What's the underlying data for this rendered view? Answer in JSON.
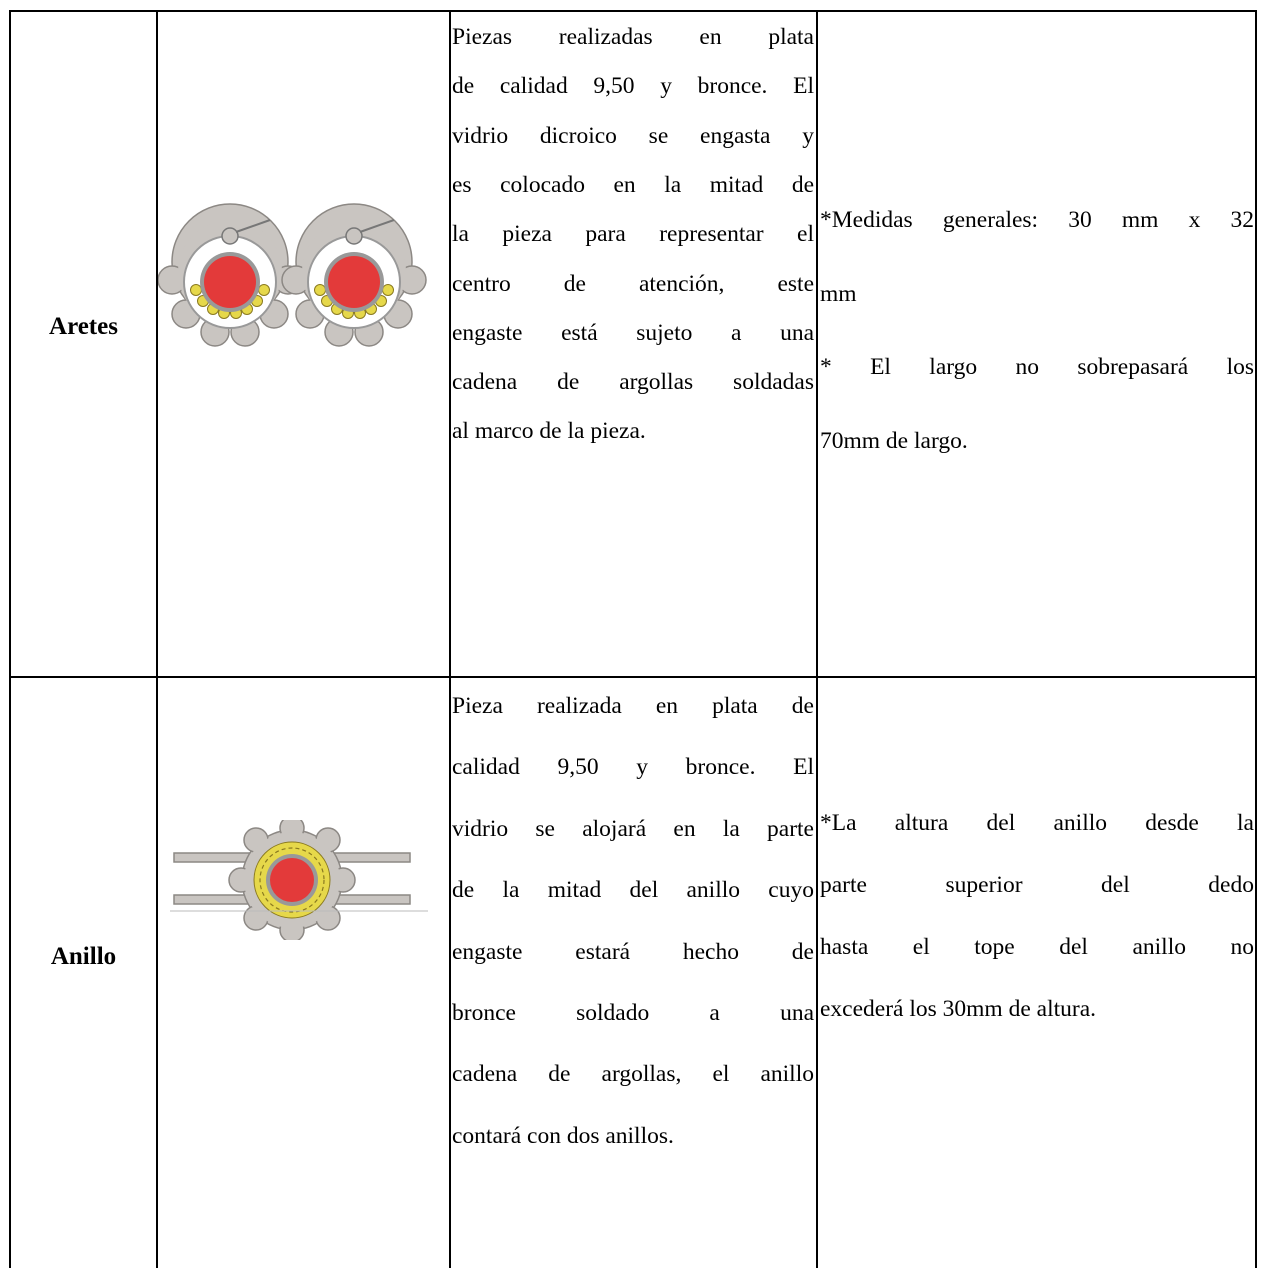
{
  "table": {
    "rows": [
      {
        "label": "Aretes",
        "description": [
          "Piezas realizadas en plata",
          "de calidad 9,50 y bronce. El",
          "vidrio dicroico se engasta y",
          "es colocado en la mitad de",
          "la pieza para representar el",
          "centro de atención, este",
          "engaste está sujeto a una",
          "cadena de argollas soldadas",
          "al marco de la pieza."
        ],
        "specs": [
          "*Medidas generales: 30 mm x 32",
          "mm",
          "* El largo no sobrepasará los",
          "70mm de largo."
        ]
      },
      {
        "label": "Anillo",
        "description": [
          "Pieza realizada en plata de",
          "calidad 9,50 y bronce. El",
          "vidrio se alojará en la parte",
          "de la mitad del anillo cuyo",
          "engaste estará hecho de",
          "bronce soldado a una",
          "cadena de argollas, el anillo",
          "contará con dos anillos."
        ],
        "specs": [
          "*La altura del anillo desde la",
          "parte superior del dedo",
          "hasta el tope del anillo no",
          "excederá los 30mm de altura."
        ]
      }
    ]
  }
}
